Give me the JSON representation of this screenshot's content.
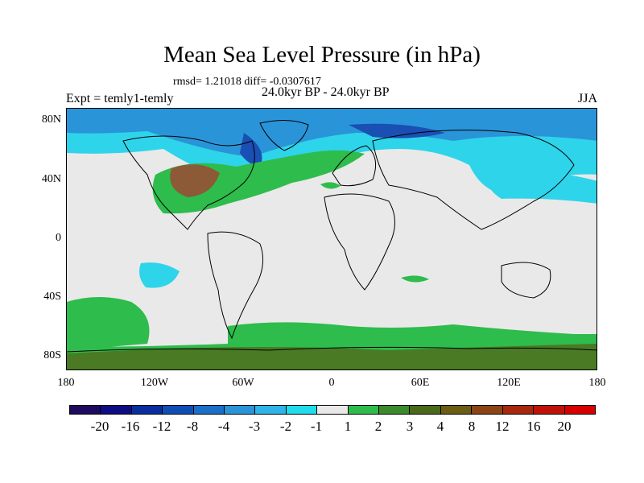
{
  "title": "Mean Sea Level Pressure (in hPa)",
  "stats": "rmsd= 1.21018 diff= -0.0307617",
  "period": "24.0kyr BP - 24.0kyr BP",
  "experiment": "Expt = temly1-temly",
  "season": "JJA",
  "lat_labels": [
    "80N",
    "40N",
    "0",
    "40S",
    "80S"
  ],
  "lon_labels": [
    "180",
    "120W",
    "60W",
    "0",
    "60E",
    "120E",
    "180"
  ],
  "colorbar": {
    "colors": [
      "#1e0a5e",
      "#0d0c82",
      "#0a2e9e",
      "#0f4fb4",
      "#1a70c8",
      "#2a94d8",
      "#2eb4e8",
      "#20dcea",
      "#e9e9e9",
      "#2ebc4c",
      "#3b8a2c",
      "#4a6a1a",
      "#6b5e14",
      "#8c4414",
      "#a8280e",
      "#c01208",
      "#d60000"
    ],
    "labels": [
      "-20",
      "-16",
      "-12",
      "-8",
      "-4",
      "-3",
      "-2",
      "-1",
      "1",
      "2",
      "3",
      "4",
      "8",
      "12",
      "16",
      "20"
    ]
  }
}
